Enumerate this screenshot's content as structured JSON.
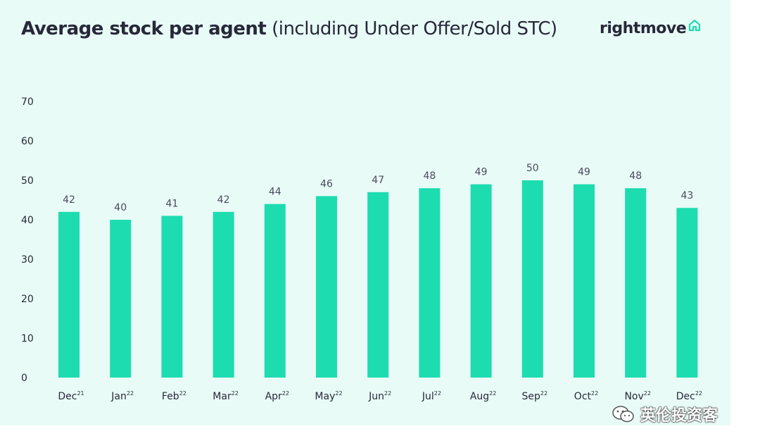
{
  "title": {
    "bold": "Average stock per agent",
    "light": " (including Under Offer/Sold STC)"
  },
  "logo": {
    "text": "rightmove",
    "icon": "house-outline-icon"
  },
  "watermark": {
    "text": "英伦投资客",
    "icon": "wechat-icon"
  },
  "colors": {
    "bar": "#1ddcb0",
    "background": "#e8fbf6",
    "text": "#27283a"
  },
  "chart_data": {
    "type": "bar",
    "title": "Average stock per agent (including Under Offer/Sold STC)",
    "categories": [
      {
        "month": "Dec",
        "year": "21"
      },
      {
        "month": "Jan",
        "year": "22"
      },
      {
        "month": "Feb",
        "year": "22"
      },
      {
        "month": "Mar",
        "year": "22"
      },
      {
        "month": "Apr",
        "year": "22"
      },
      {
        "month": "May",
        "year": "22"
      },
      {
        "month": "Jun",
        "year": "22"
      },
      {
        "month": "Jul",
        "year": "22"
      },
      {
        "month": "Aug",
        "year": "22"
      },
      {
        "month": "Sep",
        "year": "22"
      },
      {
        "month": "Oct",
        "year": "22"
      },
      {
        "month": "Nov",
        "year": "22"
      },
      {
        "month": "Dec",
        "year": "22"
      }
    ],
    "values": [
      42,
      40,
      41,
      42,
      44,
      46,
      47,
      48,
      49,
      50,
      49,
      48,
      43
    ],
    "ylim": [
      0,
      70
    ],
    "yticks": [
      0,
      10,
      20,
      30,
      40,
      50,
      60,
      70
    ],
    "grid": false,
    "legend": "none",
    "data_labels": true
  }
}
